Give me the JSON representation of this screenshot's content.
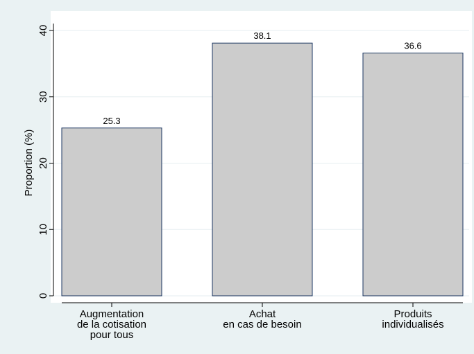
{
  "colors": {
    "background": "#eaf2f3",
    "plot_area": "#ffffff",
    "bar_fill": "#cccccc",
    "bar_stroke": "#1a3560",
    "grid": "#e6eef0",
    "axis": "#000000"
  },
  "chart_data": {
    "type": "bar",
    "title": "",
    "xlabel": "",
    "ylabel": "Proportion (%)",
    "ylim": [
      0,
      40
    ],
    "yticks": [
      0,
      10,
      20,
      30,
      40
    ],
    "grid": true,
    "categories": [
      [
        "Augmentation",
        "de la cotisation",
        "pour tous"
      ],
      [
        "Achat",
        "en cas de besoin"
      ],
      [
        "Produits",
        "individualisés"
      ]
    ],
    "values": [
      25.3,
      38.1,
      36.6
    ],
    "value_labels": [
      "25.3",
      "38.1",
      "36.6"
    ]
  }
}
